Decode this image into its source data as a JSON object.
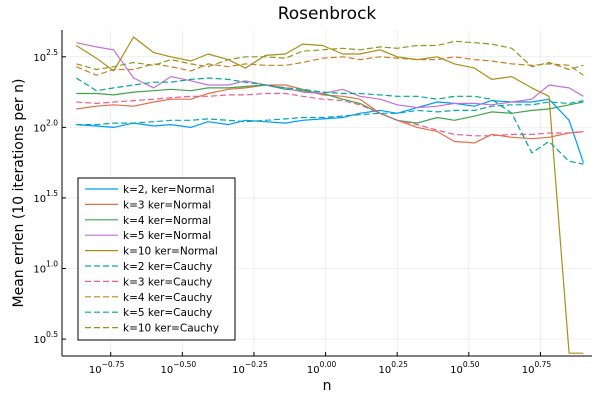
{
  "chart_data": {
    "type": "line",
    "title": "Rosenbrock",
    "xlabel": "n",
    "ylabel": "Mean errlen (10 iterations per n)",
    "x_scale": "log10",
    "y_scale": "log10",
    "xlim": [
      -0.92,
      0.93
    ],
    "ylim": [
      0.38,
      2.69
    ],
    "grid": true,
    "legend_position": "bottom-left",
    "xticks": [
      {
        "value": -0.75,
        "base": "10",
        "exp": "−0.75"
      },
      {
        "value": -0.5,
        "base": "10",
        "exp": "−0.50"
      },
      {
        "value": -0.25,
        "base": "10",
        "exp": "−0.25"
      },
      {
        "value": 0.0,
        "base": "10",
        "exp": "0.00"
      },
      {
        "value": 0.25,
        "base": "10",
        "exp": "0.25"
      },
      {
        "value": 0.5,
        "base": "10",
        "exp": "0.50"
      },
      {
        "value": 0.75,
        "base": "10",
        "exp": "0.75"
      }
    ],
    "yticks": [
      {
        "value": 0.5,
        "base": "10",
        "exp": "0.5"
      },
      {
        "value": 1.0,
        "base": "10",
        "exp": "1.0"
      },
      {
        "value": 1.5,
        "base": "10",
        "exp": "1.5"
      },
      {
        "value": 2.0,
        "base": "10",
        "exp": "2.0"
      },
      {
        "value": 2.5,
        "base": "10",
        "exp": "2.5"
      }
    ],
    "x": [
      -0.87,
      -0.8,
      -0.74,
      -0.67,
      -0.6,
      -0.54,
      -0.47,
      -0.41,
      -0.34,
      -0.28,
      -0.21,
      -0.14,
      -0.08,
      -0.01,
      0.06,
      0.12,
      0.19,
      0.25,
      0.32,
      0.39,
      0.45,
      0.52,
      0.58,
      0.65,
      0.72,
      0.78,
      0.85,
      0.9
    ],
    "series": [
      {
        "name": "k=2, ker=Normal",
        "color": "#009AFA",
        "dash": "solid",
        "values": [
          2.02,
          2.01,
          2.0,
          2.03,
          2.01,
          2.02,
          2.0,
          2.04,
          2.02,
          2.05,
          2.04,
          2.03,
          2.05,
          2.06,
          2.07,
          2.1,
          2.12,
          2.1,
          2.14,
          2.18,
          2.17,
          2.15,
          2.19,
          2.18,
          2.18,
          2.2,
          2.05,
          1.75
        ]
      },
      {
        "name": "k=3 ker=Normal",
        "color": "#E36F47",
        "dash": "solid",
        "values": [
          2.13,
          2.15,
          2.16,
          2.15,
          2.18,
          2.2,
          2.2,
          2.24,
          2.27,
          2.28,
          2.3,
          2.3,
          2.27,
          2.23,
          2.22,
          2.2,
          2.1,
          2.05,
          2.0,
          1.97,
          1.9,
          1.89,
          1.95,
          1.93,
          1.92,
          1.93,
          1.96,
          1.97
        ]
      },
      {
        "name": "k=4 ker=Normal",
        "color": "#3EA44E",
        "dash": "solid",
        "values": [
          2.24,
          2.24,
          2.23,
          2.25,
          2.26,
          2.27,
          2.26,
          2.28,
          2.28,
          2.29,
          2.3,
          2.27,
          2.26,
          2.24,
          2.2,
          2.17,
          2.1,
          2.05,
          2.03,
          2.07,
          2.05,
          2.08,
          2.11,
          2.1,
          2.12,
          2.13,
          2.16,
          2.18
        ]
      },
      {
        "name": "k=5 ker=Normal",
        "color": "#C271D2",
        "dash": "solid",
        "values": [
          2.6,
          2.57,
          2.55,
          2.35,
          2.28,
          2.36,
          2.33,
          2.3,
          2.3,
          2.33,
          2.3,
          2.28,
          2.25,
          2.24,
          2.27,
          2.22,
          2.2,
          2.16,
          2.14,
          2.15,
          2.17,
          2.17,
          2.16,
          2.18,
          2.2,
          2.3,
          2.28,
          2.22
        ]
      },
      {
        "name": "k=10 ker=Normal",
        "color": "#AC8D18",
        "dash": "solid",
        "values": [
          2.58,
          2.49,
          2.4,
          2.64,
          2.53,
          2.5,
          2.47,
          2.52,
          2.48,
          2.42,
          2.51,
          2.52,
          2.59,
          2.58,
          2.52,
          2.52,
          2.55,
          2.5,
          2.48,
          2.5,
          2.45,
          2.42,
          2.34,
          2.36,
          2.28,
          2.22,
          0.4,
          0.4
        ]
      },
      {
        "name": "k=2 ker=Cauchy",
        "color": "#00A9AD",
        "dash": "dashed",
        "values": [
          2.02,
          2.02,
          2.03,
          2.03,
          2.04,
          2.05,
          2.05,
          2.06,
          2.05,
          2.04,
          2.05,
          2.06,
          2.07,
          2.07,
          2.08,
          2.09,
          2.1,
          2.1,
          2.12,
          2.11,
          2.12,
          2.12,
          2.15,
          2.16,
          2.16,
          2.18,
          2.17,
          2.19
        ]
      },
      {
        "name": "k=3 ker=Cauchy",
        "color": "#ED5D92",
        "dash": "dashed",
        "values": [
          2.18,
          2.17,
          2.18,
          2.19,
          2.2,
          2.21,
          2.22,
          2.22,
          2.23,
          2.23,
          2.24,
          2.24,
          2.22,
          2.2,
          2.19,
          2.16,
          2.1,
          2.05,
          2.02,
          1.98,
          1.95,
          1.94,
          1.94,
          1.95,
          1.95,
          1.96,
          1.96,
          1.97
        ]
      },
      {
        "name": "k=4 ker=Cauchy",
        "color": "#C68125",
        "dash": "dashed",
        "values": [
          2.43,
          2.37,
          2.41,
          2.41,
          2.45,
          2.43,
          2.4,
          2.45,
          2.43,
          2.45,
          2.44,
          2.44,
          2.46,
          2.49,
          2.5,
          2.48,
          2.5,
          2.49,
          2.48,
          2.48,
          2.5,
          2.48,
          2.47,
          2.45,
          2.44,
          2.45,
          2.44,
          2.37
        ]
      },
      {
        "name": "k=5 ker=Cauchy",
        "color": "#00A98D",
        "dash": "dashed",
        "values": [
          2.35,
          2.26,
          2.28,
          2.3,
          2.32,
          2.32,
          2.34,
          2.35,
          2.34,
          2.32,
          2.3,
          2.28,
          2.27,
          2.25,
          2.24,
          2.24,
          2.23,
          2.22,
          2.22,
          2.2,
          2.22,
          2.22,
          2.2,
          2.1,
          1.82,
          1.9,
          1.76,
          1.74
        ]
      },
      {
        "name": "k=10 ker=Cauchy",
        "color": "#8E971E",
        "dash": "dashed",
        "values": [
          2.45,
          2.41,
          2.43,
          2.46,
          2.44,
          2.48,
          2.45,
          2.43,
          2.48,
          2.5,
          2.5,
          2.49,
          2.54,
          2.55,
          2.56,
          2.55,
          2.57,
          2.56,
          2.58,
          2.58,
          2.61,
          2.6,
          2.59,
          2.56,
          2.43,
          2.46,
          2.41,
          2.44
        ]
      }
    ]
  }
}
